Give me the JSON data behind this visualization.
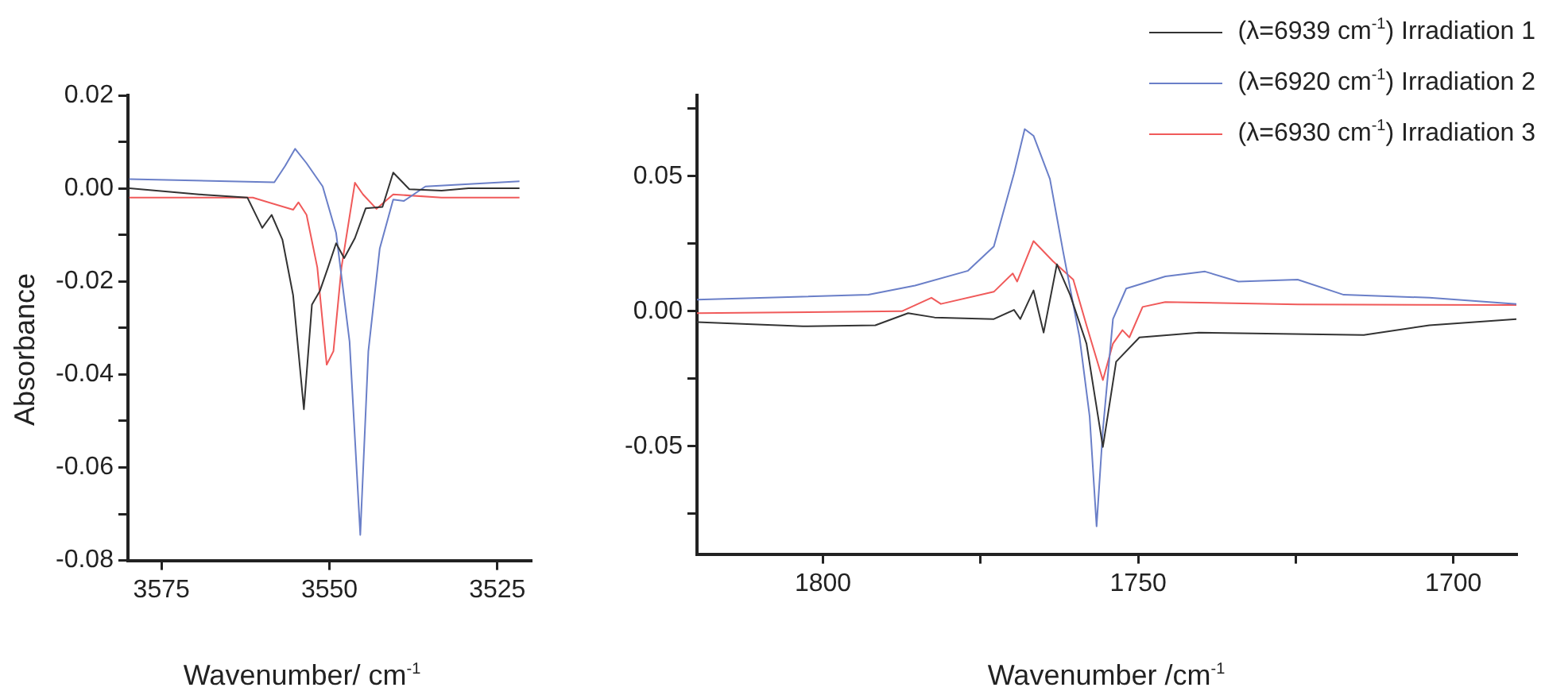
{
  "chart_data": [
    {
      "type": "line",
      "ylabel": "Absorbance",
      "xlabel": "Wavenumber/ cm$^{-1}$",
      "xlim": [
        3580,
        3520
      ],
      "xticks": [
        3575,
        3550,
        3525
      ],
      "ylim": [
        -0.08,
        0.02
      ],
      "yticks": [
        {
          "value": -0.08,
          "label": "-0.08"
        },
        {
          "value": -0.07,
          "label": null
        },
        {
          "value": -0.06,
          "label": "-0.06"
        },
        {
          "value": -0.05,
          "label": null
        },
        {
          "value": -0.04,
          "label": "-0.04"
        },
        {
          "value": -0.03,
          "label": null
        },
        {
          "value": -0.02,
          "label": "-0.02"
        },
        {
          "value": -0.01,
          "label": null
        },
        {
          "value": 0,
          "label": "0.00"
        },
        {
          "value": 0.01,
          "label": null
        },
        {
          "value": 0.02,
          "label": "0.02"
        }
      ],
      "grid": false,
      "legend": false,
      "marker": "none",
      "line_style": "solid",
      "series": [
        {
          "color": "#333333",
          "x": [
            3579.8,
            3569.4,
            3562.2,
            3560,
            3558.6,
            3557,
            3555.4,
            3553.8,
            3552.6,
            3551.4,
            3550.2,
            3549,
            3547.8,
            3546.2,
            3544.6,
            3542.1,
            3540.5,
            3538.1,
            3533.3,
            3529.3,
            3521.7
          ],
          "values": [
            0,
            -0.0013,
            -0.002,
            -0.0085,
            -0.0057,
            -0.011,
            -0.023,
            -0.0475,
            -0.025,
            -0.022,
            -0.017,
            -0.0118,
            -0.015,
            -0.0107,
            -0.0043,
            -0.004,
            0.0034,
            -0.0002,
            -0.0005,
            0,
            0
          ]
        },
        {
          "color": "#6a7fc8",
          "x": [
            3579.8,
            3558.2,
            3556.6,
            3555.1,
            3553.4,
            3551,
            3549,
            3547,
            3545.4,
            3544.2,
            3542.5,
            3540.5,
            3538.9,
            3535.7,
            3521.7
          ],
          "values": [
            0.002,
            0.0013,
            0.0048,
            0.0085,
            0.0054,
            0.0004,
            -0.0096,
            -0.0329,
            -0.0745,
            -0.035,
            -0.0129,
            -0.0024,
            -0.0027,
            0.0004,
            0.0015
          ]
        },
        {
          "color": "#f05a5a",
          "x": [
            3579.8,
            3561.4,
            3555.4,
            3554.6,
            3553.4,
            3551.8,
            3550.4,
            3549.4,
            3548.2,
            3546.2,
            3545,
            3543,
            3540.5,
            3533.3,
            3521.7
          ],
          "values": [
            -0.002,
            -0.002,
            -0.0046,
            -0.003,
            -0.0057,
            -0.017,
            -0.0379,
            -0.035,
            -0.017,
            0.0012,
            -0.0013,
            -0.0044,
            -0.0013,
            -0.002,
            -0.002
          ]
        }
      ]
    },
    {
      "type": "line",
      "xlabel": "Wavenumber /cm$^{-1}$",
      "xlim": [
        1820,
        1690
      ],
      "xticks": [
        1800,
        {
          "value": 1775,
          "label": null
        },
        1750,
        {
          "value": 1725,
          "label": null
        },
        1700
      ],
      "ylim": [
        -0.09,
        0.08
      ],
      "yticks": [
        {
          "value": -0.075,
          "label": null
        },
        {
          "value": -0.05,
          "label": "-0.05"
        },
        {
          "value": -0.025,
          "label": null
        },
        {
          "value": 0,
          "label": "0.00"
        },
        {
          "value": 0.025,
          "label": null
        },
        {
          "value": 0.05,
          "label": "0.05"
        },
        {
          "value": 0.075,
          "label": null
        }
      ],
      "grid": false,
      "legend": "top right",
      "marker": "none",
      "line_style": "solid",
      "series": [
        {
          "name": "(λ=6939 cm$^{-1}$) Irradiation 1",
          "color": "#333333",
          "x": [
            1820,
            1803.2,
            1791.7,
            1786.5,
            1782.3,
            1772.9,
            1769.7,
            1768.7,
            1766.6,
            1765,
            1762.9,
            1760.8,
            1758.2,
            1755.6,
            1753.5,
            1749.8,
            1740.4,
            1714.2,
            1703.8,
            1690
          ],
          "values": [
            -0.004,
            -0.0056,
            -0.0052,
            -0.0007,
            -0.0023,
            -0.0029,
            0.0005,
            -0.0029,
            0.0077,
            -0.0079,
            0.0174,
            0.0061,
            -0.012,
            -0.0503,
            -0.0187,
            -0.0097,
            -0.0079,
            -0.0088,
            -0.0052,
            -0.0029
          ]
        },
        {
          "name": "(λ=6920 cm$^{-1}$) Irradiation 2",
          "color": "#6a7fc8",
          "x": [
            1820,
            1792.8,
            1785.4,
            1777,
            1772.9,
            1769.7,
            1768,
            1766.6,
            1764,
            1761.9,
            1759.3,
            1757.7,
            1756.6,
            1755.6,
            1754,
            1751.9,
            1745.7,
            1739.4,
            1734.1,
            1724.7,
            1717.4,
            1703.8,
            1690
          ],
          "values": [
            0.0043,
            0.0061,
            0.0095,
            0.015,
            0.024,
            0.051,
            0.0675,
            0.065,
            0.049,
            0.022,
            -0.0097,
            -0.039,
            -0.0797,
            -0.044,
            -0.0029,
            0.0084,
            0.0129,
            0.0147,
            0.011,
            0.0117,
            0.0061,
            0.005,
            0.0027
          ]
        },
        {
          "name": "(λ=6930 cm$^{-1}$) Irradiation 3",
          "color": "#f05a5a",
          "x": [
            1820,
            1787.5,
            1782.8,
            1781.3,
            1772.9,
            1769.9,
            1769.2,
            1766.6,
            1763.5,
            1760.3,
            1758.2,
            1755.6,
            1754,
            1752.5,
            1751.4,
            1749.3,
            1745.7,
            1724.7,
            1690
          ],
          "values": [
            -0.0007,
            0,
            0.005,
            0.0027,
            0.0072,
            0.014,
            0.011,
            0.026,
            0.0185,
            0.0117,
            -0.0052,
            -0.0255,
            -0.012,
            -0.007,
            -0.0097,
            0.0016,
            0.0034,
            0.0025,
            0.0023
          ]
        }
      ]
    }
  ]
}
